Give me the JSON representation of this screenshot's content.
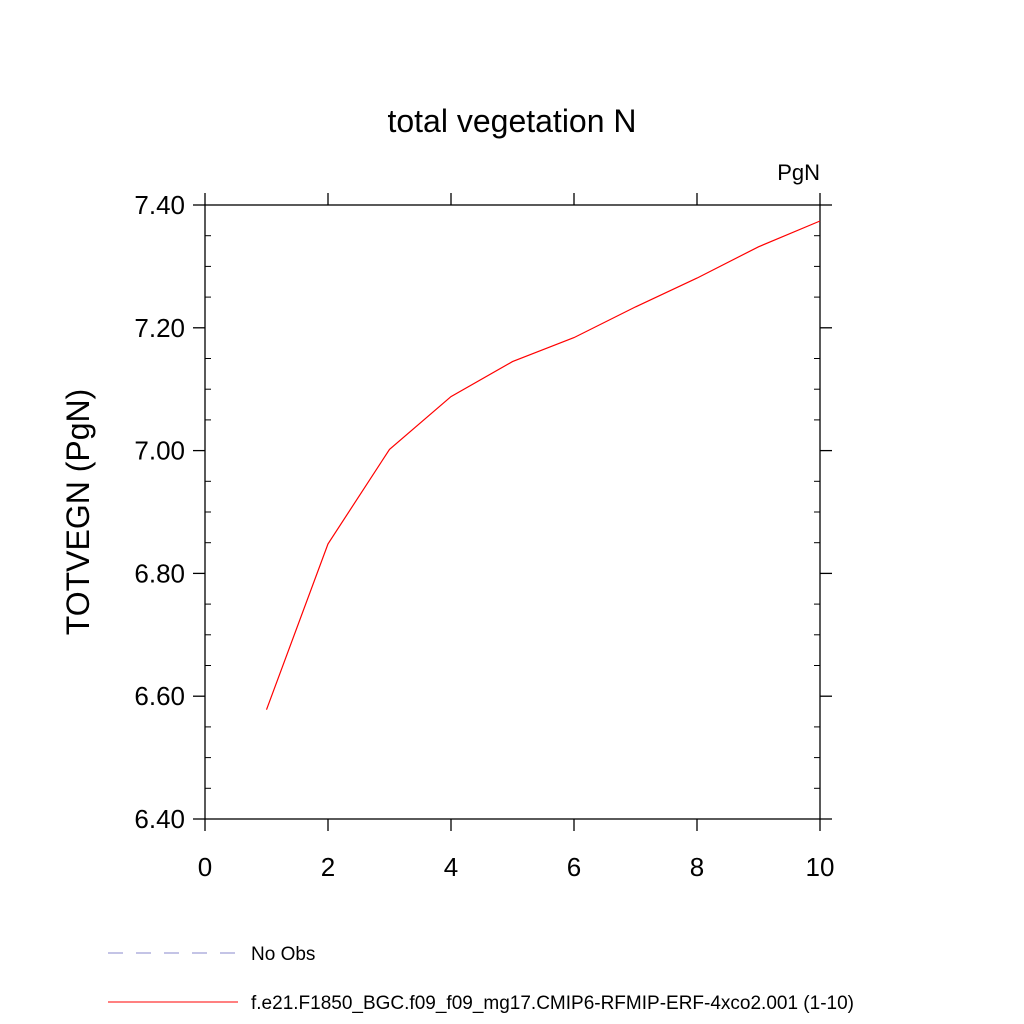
{
  "chart_data": {
    "type": "line",
    "title": "total vegetation N",
    "unit_label": "PgN",
    "xlabel": "",
    "ylabel": "TOTVEGN  (PgN)",
    "xlim": [
      0,
      10
    ],
    "ylim": [
      6.4,
      7.4
    ],
    "x_ticks": [
      0,
      2,
      4,
      6,
      8,
      10
    ],
    "x_tick_labels": [
      "0",
      "2",
      "4",
      "6",
      "8",
      "10"
    ],
    "y_ticks": [
      6.4,
      6.6,
      6.8,
      7.0,
      7.2,
      7.4
    ],
    "y_tick_labels": [
      "6.40",
      "6.60",
      "6.80",
      "7.00",
      "7.20",
      "7.40"
    ],
    "grid": false,
    "legend_position": "bottom-left",
    "series": [
      {
        "name": "f.e21.F1850_BGC.f09_f09_mg17.CMIP6-RFMIP-ERF-4xco2.001 (1-10)",
        "color": "#ff0000",
        "style": "solid",
        "x": [
          1,
          2,
          3,
          4,
          5,
          6,
          7,
          8,
          9,
          10
        ],
        "y": [
          6.578,
          6.848,
          7.002,
          7.088,
          7.145,
          7.184,
          7.234,
          7.281,
          7.332,
          7.374
        ]
      }
    ],
    "legend": [
      {
        "label": "No Obs",
        "color": "#8888cc",
        "style": "dashed"
      },
      {
        "label": "f.e21.F1850_BGC.f09_f09_mg17.CMIP6-RFMIP-ERF-4xco2.001 (1-10)",
        "color": "#ff0000",
        "style": "solid"
      }
    ]
  }
}
